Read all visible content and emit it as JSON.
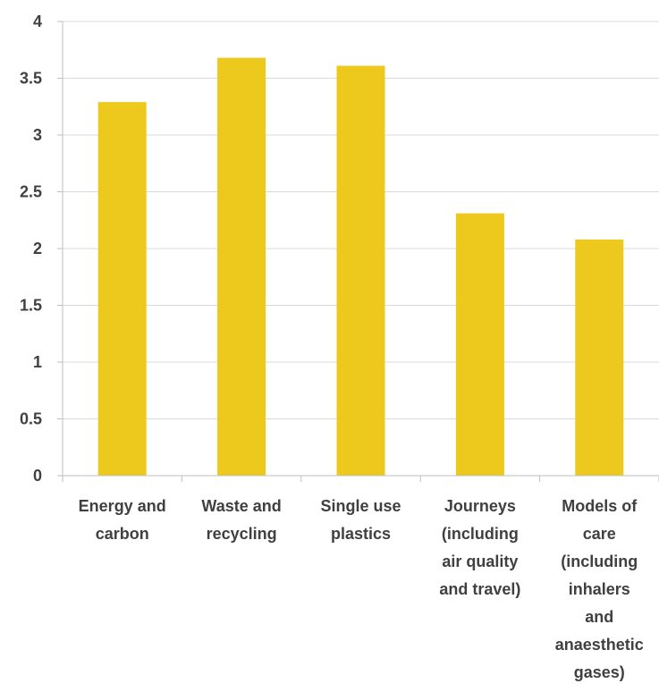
{
  "chart_data": {
    "type": "bar",
    "categories": [
      [
        "Energy and",
        "carbon"
      ],
      [
        "Waste and",
        "recycling"
      ],
      [
        "Single use",
        "plastics"
      ],
      [
        "Journeys",
        "(including",
        "air quality",
        "and travel)"
      ],
      [
        "Models of",
        "care",
        "(including",
        "inhalers",
        "and",
        "anaesthetic",
        "gases)"
      ]
    ],
    "values": [
      3.29,
      3.68,
      3.61,
      2.31,
      2.08
    ],
    "ylim": [
      0,
      4
    ],
    "yticks": [
      "0",
      "0.5",
      "1",
      "1.5",
      "2",
      "2.5",
      "3",
      "3.5",
      "4"
    ],
    "grid": true,
    "bar_color": "#EDC81D",
    "grid_color": "#D9D9D9",
    "axis_color": "#BFBFBF",
    "text_color": "#404040"
  }
}
